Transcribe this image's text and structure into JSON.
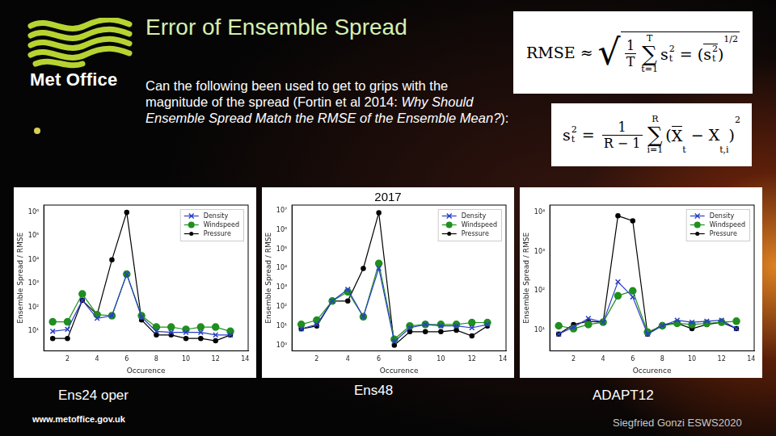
{
  "slide": {
    "title": "Error of Ensemble Spread",
    "logo": "Met Office",
    "text": "Can the following been used to get to grips with the magnitude of the spread (Fortin et al 2014: ",
    "text_italic": "Why Should Ensemble Spread Match the RMSE of the Ensemble Mean?",
    "text_end": "):",
    "formula_1": [
      {
        "text": "RMSE ≈ "
      },
      {
        "sqrt": {
          "symbol": "√",
          "body": [
            {
              "frac": [
                "1",
                "T"
              ]
            },
            {
              "sum": [
                "∑",
                "T",
                "t=1"
              ]
            },
            {
              "text": "s"
            },
            {
              "subsup": [
                "t",
                "2"
              ]
            },
            {
              "text": " = ("
            },
            {
              "over": [
                {
                  "text": "s"
                },
                {
                  "subsup": [
                    "t",
                    "2"
                  ]
                }
              ]
            },
            {
              "text": ")"
            },
            {
              "sup": "1/2"
            }
          ]
        }
      }
    ],
    "formula_2": [
      {
        "text": "s"
      },
      {
        "subsup": [
          "t",
          "2"
        ]
      },
      {
        "text": " = "
      },
      {
        "frac": [
          "1",
          "R − 1"
        ]
      },
      {
        "sum": [
          "∑",
          "R",
          "i=1"
        ]
      },
      {
        "text": "("
      },
      {
        "over": [
          {
            "text": "X"
          }
        ]
      },
      {
        "sub": "t"
      },
      {
        "text": " − X"
      },
      {
        "sub": "t,i"
      },
      {
        "text": ")"
      },
      {
        "sup": "2"
      }
    ],
    "year": "2017",
    "url": "www.metoffice.gov.uk",
    "footer": "Siegfried Gonzi ESWS2020"
  },
  "chart_data": [
    {
      "type": "line",
      "caption": "Ens24 oper",
      "x_label": "Occurence",
      "y_label": "Ensemble Spread / RMSE",
      "log": "y",
      "grid": false,
      "legend": "upper right",
      "x": [
        1,
        2,
        3,
        4,
        5,
        6,
        7,
        8,
        9,
        10,
        11,
        12,
        13
      ],
      "xlim": [
        0.4,
        14.2
      ],
      "xticks": [
        2,
        4,
        6,
        8,
        10,
        12,
        14
      ],
      "ylim": [
        1.5,
        2000000
      ],
      "yticks": [
        {
          "value": 10,
          "label": "10¹"
        },
        {
          "value": 100,
          "label": "10²"
        },
        {
          "value": 1000,
          "label": "10³"
        },
        {
          "value": 10000,
          "label": "10⁴"
        },
        {
          "value": 100000,
          "label": "10⁵"
        },
        {
          "value": 1000000,
          "label": "10⁶"
        }
      ],
      "series": [
        {
          "name": "Density",
          "color": "#2a3fc8",
          "marker": "x",
          "values": [
            10,
            12,
            200,
            35,
            45,
            2500,
            40,
            10,
            9,
            9,
            9,
            7,
            7
          ]
        },
        {
          "name": "Windspeed",
          "color": "#1f8f1f",
          "marker": "circle",
          "values": [
            25,
            25,
            370,
            50,
            45,
            2500,
            45,
            15,
            15,
            12,
            15,
            15,
            10
          ]
        },
        {
          "name": "Pressure",
          "color": "#000000",
          "marker": "point",
          "values": [
            5,
            5,
            200,
            50,
            10000,
            1000000,
            30,
            7,
            7,
            5,
            5,
            4,
            7
          ]
        }
      ]
    },
    {
      "type": "line",
      "caption": "Ens48",
      "x_label": "Occurence",
      "y_label": "Ensemble Spread / RMSE",
      "log": "y",
      "grid": false,
      "legend": "upper right",
      "x": [
        1,
        2,
        3,
        4,
        5,
        6,
        7,
        8,
        9,
        10,
        11,
        12,
        13
      ],
      "xlim": [
        0.4,
        14.2
      ],
      "xticks": [
        2,
        4,
        6,
        8,
        10,
        12,
        14
      ],
      "ylim": [
        0.5,
        20000000
      ],
      "yticks": [
        {
          "value": 1,
          "label": "10⁰"
        },
        {
          "value": 10,
          "label": "10¹"
        },
        {
          "value": 100,
          "label": "10²"
        },
        {
          "value": 1000,
          "label": "10³"
        },
        {
          "value": 10000,
          "label": "10⁴"
        },
        {
          "value": 100000,
          "label": "10⁵"
        },
        {
          "value": 1000000,
          "label": "10⁶"
        },
        {
          "value": 10000000,
          "label": "10⁷"
        }
      ],
      "series": [
        {
          "name": "Density",
          "color": "#2a3fc8",
          "marker": "x",
          "values": [
            7,
            12,
            200,
            800,
            30,
            10000,
            1.5,
            8,
            12,
            10,
            10,
            8,
            12
          ]
        },
        {
          "name": "Windspeed",
          "color": "#1f8f1f",
          "marker": "circle",
          "values": [
            12,
            20,
            200,
            600,
            30,
            18000,
            2,
            10,
            12,
            12,
            12,
            15,
            15
          ]
        },
        {
          "name": "Pressure",
          "color": "#000000",
          "marker": "point",
          "values": [
            7,
            10,
            200,
            200,
            10000,
            8000000,
            1,
            5,
            5,
            5,
            6,
            3,
            10
          ]
        }
      ]
    },
    {
      "type": "line",
      "caption": "ADAPT12",
      "x_label": "Occurence",
      "y_label": "Ensemble Spread / RMSE",
      "log": "y",
      "grid": false,
      "legend": "upper right",
      "x": [
        1,
        2,
        3,
        4,
        5,
        6,
        7,
        8,
        9,
        10,
        11,
        12,
        13
      ],
      "xlim": [
        0.4,
        14.2
      ],
      "xticks": [
        2,
        4,
        6,
        8,
        10,
        12,
        14
      ],
      "ylim": [
        3,
        15000
      ],
      "yticks": [
        {
          "value": 10,
          "label": "10¹"
        },
        {
          "value": 100,
          "label": "10²"
        },
        {
          "value": 1000,
          "label": "10³"
        },
        {
          "value": 10000,
          "label": "10⁴"
        }
      ],
      "series": [
        {
          "name": "Density",
          "color": "#2a3fc8",
          "marker": "x",
          "values": [
            8,
            12,
            20,
            16,
            170,
            70,
            8,
            13,
            18,
            16,
            17,
            18,
            11
          ]
        },
        {
          "name": "Windspeed",
          "color": "#1f8f1f",
          "marker": "circle",
          "values": [
            13,
            11,
            14,
            16,
            75,
            100,
            9,
            13,
            15,
            14,
            15,
            16,
            17
          ]
        },
        {
          "name": "Pressure",
          "color": "#000000",
          "marker": "point",
          "values": [
            8,
            14,
            17,
            16,
            8000,
            6000,
            8,
            14,
            15,
            11,
            14,
            16,
            11
          ]
        }
      ]
    }
  ]
}
